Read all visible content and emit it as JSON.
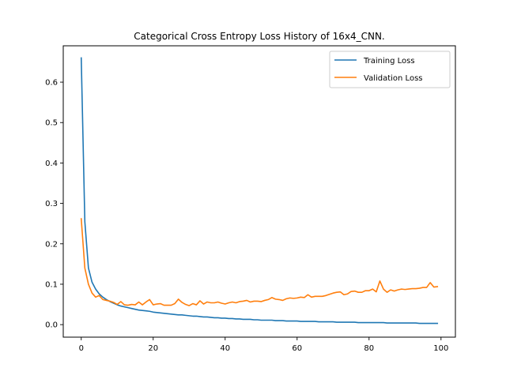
{
  "chart_data": {
    "type": "line",
    "title": "Categorical Cross Entropy Loss History of 16x4_CNN.",
    "xlabel": "",
    "ylabel": "",
    "xlim": [
      -5,
      104
    ],
    "ylim": [
      -0.031,
      0.69
    ],
    "x_ticks": [
      0,
      20,
      40,
      60,
      80,
      100
    ],
    "y_ticks": [
      0.0,
      0.1,
      0.2,
      0.3,
      0.4,
      0.5,
      0.6
    ],
    "y_tick_labels": [
      "0.0",
      "0.1",
      "0.2",
      "0.3",
      "0.4",
      "0.5",
      "0.6"
    ],
    "grid": false,
    "legend_position": "top-right",
    "series": [
      {
        "name": "Training Loss",
        "color": "#1f77b4",
        "x": [
          0,
          1,
          2,
          3,
          4,
          5,
          6,
          7,
          8,
          9,
          10,
          11,
          12,
          13,
          14,
          15,
          16,
          17,
          18,
          19,
          20,
          21,
          22,
          23,
          24,
          25,
          26,
          27,
          28,
          29,
          30,
          31,
          32,
          33,
          34,
          35,
          36,
          37,
          38,
          39,
          40,
          41,
          42,
          43,
          44,
          45,
          46,
          47,
          48,
          49,
          50,
          51,
          52,
          53,
          54,
          55,
          56,
          57,
          58,
          59,
          60,
          61,
          62,
          63,
          64,
          65,
          66,
          67,
          68,
          69,
          70,
          71,
          72,
          73,
          74,
          75,
          76,
          77,
          78,
          79,
          80,
          81,
          82,
          83,
          84,
          85,
          86,
          87,
          88,
          89,
          90,
          91,
          92,
          93,
          94,
          95,
          96,
          97,
          98,
          99
        ],
        "values": [
          0.66,
          0.255,
          0.14,
          0.105,
          0.088,
          0.076,
          0.068,
          0.062,
          0.057,
          0.053,
          0.049,
          0.046,
          0.044,
          0.042,
          0.04,
          0.038,
          0.036,
          0.035,
          0.034,
          0.033,
          0.031,
          0.03,
          0.029,
          0.028,
          0.027,
          0.026,
          0.025,
          0.024,
          0.024,
          0.023,
          0.022,
          0.021,
          0.021,
          0.02,
          0.019,
          0.019,
          0.018,
          0.017,
          0.017,
          0.016,
          0.016,
          0.015,
          0.015,
          0.014,
          0.014,
          0.013,
          0.013,
          0.013,
          0.012,
          0.012,
          0.011,
          0.011,
          0.011,
          0.011,
          0.01,
          0.01,
          0.01,
          0.009,
          0.009,
          0.009,
          0.009,
          0.008,
          0.008,
          0.008,
          0.008,
          0.008,
          0.007,
          0.007,
          0.007,
          0.007,
          0.007,
          0.006,
          0.006,
          0.006,
          0.006,
          0.006,
          0.006,
          0.005,
          0.005,
          0.005,
          0.005,
          0.005,
          0.005,
          0.005,
          0.005,
          0.004,
          0.004,
          0.004,
          0.004,
          0.004,
          0.004,
          0.004,
          0.004,
          0.004,
          0.003,
          0.003,
          0.003,
          0.003,
          0.003,
          0.003
        ]
      },
      {
        "name": "Validation Loss",
        "color": "#ff7f0e",
        "x": [
          0,
          1,
          2,
          3,
          4,
          5,
          6,
          7,
          8,
          9,
          10,
          11,
          12,
          13,
          14,
          15,
          16,
          17,
          18,
          19,
          20,
          21,
          22,
          23,
          24,
          25,
          26,
          27,
          28,
          29,
          30,
          31,
          32,
          33,
          34,
          35,
          36,
          37,
          38,
          39,
          40,
          41,
          42,
          43,
          44,
          45,
          46,
          47,
          48,
          49,
          50,
          51,
          52,
          53,
          54,
          55,
          56,
          57,
          58,
          59,
          60,
          61,
          62,
          63,
          64,
          65,
          66,
          67,
          68,
          69,
          70,
          71,
          72,
          73,
          74,
          75,
          76,
          77,
          78,
          79,
          80,
          81,
          82,
          83,
          84,
          85,
          86,
          87,
          88,
          89,
          90,
          91,
          92,
          93,
          94,
          95,
          96,
          97,
          98,
          99
        ],
        "values": [
          0.262,
          0.14,
          0.1,
          0.078,
          0.068,
          0.072,
          0.062,
          0.06,
          0.058,
          0.055,
          0.05,
          0.057,
          0.049,
          0.048,
          0.05,
          0.049,
          0.056,
          0.049,
          0.056,
          0.062,
          0.049,
          0.051,
          0.052,
          0.048,
          0.048,
          0.048,
          0.052,
          0.063,
          0.055,
          0.05,
          0.047,
          0.052,
          0.049,
          0.059,
          0.051,
          0.056,
          0.054,
          0.054,
          0.056,
          0.053,
          0.051,
          0.054,
          0.056,
          0.054,
          0.057,
          0.058,
          0.06,
          0.056,
          0.058,
          0.058,
          0.057,
          0.06,
          0.062,
          0.067,
          0.063,
          0.062,
          0.06,
          0.064,
          0.066,
          0.065,
          0.066,
          0.068,
          0.067,
          0.074,
          0.068,
          0.07,
          0.07,
          0.07,
          0.072,
          0.075,
          0.078,
          0.08,
          0.081,
          0.074,
          0.076,
          0.082,
          0.083,
          0.08,
          0.08,
          0.084,
          0.084,
          0.088,
          0.081,
          0.108,
          0.088,
          0.08,
          0.086,
          0.083,
          0.086,
          0.088,
          0.087,
          0.088,
          0.089,
          0.089,
          0.09,
          0.092,
          0.092,
          0.104,
          0.093,
          0.094
        ]
      }
    ]
  }
}
